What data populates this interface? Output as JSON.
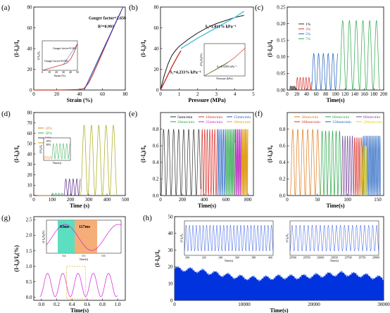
{
  "panel_labels": [
    "(a)",
    "(b)",
    "(c)",
    "(d)",
    "(e)",
    "(f)",
    "(g)",
    "(h)"
  ],
  "chart_data": [
    {
      "panel": "(a)",
      "type": "line",
      "xlabel": "Strain (%)",
      "ylabel": "(I-I₀)/I₀",
      "xlim": [
        0,
        80
      ],
      "ylim": [
        0,
        80
      ],
      "xticks": [
        "0",
        "20",
        "40",
        "60",
        "80"
      ],
      "yticks": [
        "0",
        "20",
        "40",
        "60",
        "80"
      ],
      "series": [
        {
          "color": "#c0392b",
          "style": "data",
          "x": [
            0,
            10,
            20,
            30,
            40,
            44,
            48,
            52,
            56,
            60,
            64,
            68,
            72,
            76
          ],
          "y": [
            0,
            0,
            0,
            0.2,
            0.5,
            1.5,
            7,
            16,
            26,
            36,
            46,
            56,
            66,
            75
          ]
        },
        {
          "color": "#1f3fbf",
          "style": "fit",
          "x": [
            44,
            78
          ],
          "y": [
            0,
            80
          ]
        }
      ],
      "annotations": [
        "Gauger factor=2.658",
        "R²=0.993"
      ],
      "inset": {
        "xlabel": "Strain (%)",
        "ylabel": "(I-I₀)/I₀",
        "xticks": [
          "0",
          "10",
          "20",
          "30",
          "40",
          "50"
        ],
        "annotations": [
          "Gauger factor=0.262",
          "Gauger factor=0.036"
        ],
        "x": [
          0,
          5,
          10,
          15,
          20,
          25,
          30,
          35,
          40,
          45,
          50
        ],
        "y": [
          0,
          0.2,
          0.4,
          0.6,
          0.8,
          1,
          1.2,
          1.5,
          2.2,
          3.6,
          5.4
        ]
      }
    },
    {
      "panel": "(b)",
      "type": "line",
      "xlabel": "Pressure (MPa)",
      "ylabel": "(I-I₀)/I₀",
      "xlim": [
        0,
        5
      ],
      "ylim": [
        0,
        80
      ],
      "xticks": [
        "0",
        "1",
        "2",
        "3",
        "4",
        "5"
      ],
      "yticks": [
        "0",
        "20",
        "40",
        "60",
        "80"
      ],
      "series": [
        {
          "color": "#000000",
          "style": "data",
          "x": [
            0,
            0.2,
            0.4,
            0.6,
            0.8,
            1,
            1.5,
            2,
            2.5,
            3,
            3.5,
            4,
            4.5
          ],
          "y": [
            0,
            14,
            25,
            33,
            38,
            42,
            49,
            55,
            60,
            64,
            67,
            70,
            72
          ]
        },
        {
          "color": "#c0392b",
          "style": "fit",
          "x": [
            0,
            0.3,
            0.6,
            0.9,
            1.1
          ],
          "y": [
            0,
            11,
            22,
            32,
            38
          ]
        },
        {
          "color": "#4ec3e0",
          "style": "fit",
          "x": [
            1.1,
            2,
            3,
            4,
            4.5
          ],
          "y": [
            40,
            50,
            60,
            70,
            76
          ]
        }
      ],
      "annotations": [
        "S₂=1.011% kPa⁻¹",
        "S₁=4.233% kPa⁻¹"
      ],
      "inset": {
        "xlabel": "Pressure (kPa)",
        "ylabel": "(I-I₀)/I₀(%)",
        "annotations": [
          "S₀=5.520% kPa⁻¹"
        ],
        "x": [
          0,
          1,
          2,
          3,
          4,
          5,
          6,
          7,
          8
        ],
        "y": [
          0,
          3,
          6,
          9,
          12,
          16,
          20,
          25,
          30
        ]
      }
    },
    {
      "panel": "(c)",
      "type": "line",
      "xlabel": "Time(s)",
      "ylabel": "(I-I₀)/I₀",
      "xlim": [
        0,
        200
      ],
      "ylim": [
        0,
        0.25
      ],
      "xticks": [
        "0",
        "20",
        "40",
        "60",
        "80",
        "100",
        "120",
        "140",
        "160",
        "180",
        "200"
      ],
      "yticks": [
        "0.00",
        "0.05",
        "0.10",
        "0.15",
        "0.20",
        "0.25"
      ],
      "series": [
        {
          "name": "1%",
          "color": "#333333",
          "t0": 5,
          "t1": 18,
          "period": 3,
          "amp": 0.012
        },
        {
          "name": "3%",
          "color": "#d9302c",
          "t0": 18,
          "t1": 50,
          "period": 6,
          "amp": 0.038
        },
        {
          "name": "5%",
          "color": "#1f5fbf",
          "t0": 50,
          "t1": 105,
          "period": 10,
          "amp": 0.11
        },
        {
          "name": "7%",
          "color": "#2aa84a",
          "t0": 108,
          "t1": 192,
          "period": 14,
          "amp": 0.21
        }
      ]
    },
    {
      "panel": "(d)",
      "type": "line",
      "xlabel": "Time (s)",
      "ylabel": "(I-I₀)/I₀",
      "xlim": [
        0,
        500
      ],
      "ylim": [
        0,
        80
      ],
      "xticks": [
        "0",
        "100",
        "200",
        "300",
        "400",
        "500"
      ],
      "yticks": [
        "0",
        "10",
        "20",
        "30",
        "40",
        "50",
        "60",
        "70",
        "80"
      ],
      "series": [
        {
          "name": "10%",
          "color": "#e07b1a",
          "t0": 20,
          "t1": 95,
          "period": 10,
          "amp": 0.05
        },
        {
          "name": "30%",
          "color": "#2aa84a",
          "t0": 95,
          "t1": 165,
          "period": 17,
          "amp": 2.2
        },
        {
          "name": "50%",
          "color": "#5a2a8a",
          "t0": 165,
          "t1": 255,
          "period": 20,
          "amp": 16
        },
        {
          "name": "70%",
          "color": "#a8a815",
          "t0": 255,
          "t1": 455,
          "period": 40,
          "amp": 68
        }
      ],
      "inset": {
        "xlabel": "Time(s)",
        "ylabel": "(I-I₀)/I₀",
        "series_labels": [
          "10%",
          "30%"
        ]
      }
    },
    {
      "panel": "(e)",
      "type": "line",
      "xlabel": "Time(s)",
      "ylabel": "(I-I₀)/I₀",
      "xlim": [
        0,
        850
      ],
      "ylim": [
        0,
        1.0
      ],
      "xticks": [
        "0",
        "200",
        "400",
        "600",
        "800"
      ],
      "yticks": [
        "0.0",
        "0.2",
        "0.4",
        "0.6",
        "0.8"
      ],
      "series": [
        {
          "name": "5mm/min",
          "color": "#333333",
          "t0": 5,
          "t1": 370,
          "period": 46,
          "amp": 0.8
        },
        {
          "name": "10mm/min",
          "color": "#d9302c",
          "t0": 370,
          "t1": 520,
          "period": 23,
          "amp": 0.8
        },
        {
          "name": "15mm/min",
          "color": "#1f5fbf",
          "t0": 520,
          "t1": 600,
          "period": 16,
          "amp": 0.8
        },
        {
          "name": "20mm/min",
          "color": "#2aa84a",
          "t0": 600,
          "t1": 680,
          "period": 12,
          "amp": 0.8
        },
        {
          "name": "25mm/min",
          "color": "#c02fc0",
          "t0": 680,
          "t1": 740,
          "period": 10,
          "amp": 0.8
        },
        {
          "name": "30mm/min",
          "color": "#e0a020",
          "t0": 740,
          "t1": 800,
          "period": 8,
          "amp": 0.8
        }
      ]
    },
    {
      "panel": "(f)",
      "type": "line",
      "xlabel": "Time(s)",
      "ylabel": "(I-I₀)/I₀",
      "xlim": [
        0,
        160
      ],
      "ylim": [
        0,
        1.0
      ],
      "xticks": [
        "0",
        "50",
        "100",
        "150"
      ],
      "yticks": [
        "0.0",
        "0.2",
        "0.4",
        "0.6",
        "0.8"
      ],
      "series": [
        {
          "name": "30mm/min",
          "color": "#e07b1a",
          "t0": 5,
          "t1": 55,
          "period": 8.3,
          "amp": 0.8
        },
        {
          "name": "60mm/min",
          "color": "#2aa84a",
          "t0": 55,
          "t1": 90,
          "period": 5.8,
          "amp": 0.78
        },
        {
          "name": "80mm/min",
          "color": "#7a4a9a",
          "t0": 90,
          "t1": 110,
          "period": 4,
          "amp": 0.72
        },
        {
          "name": "100mm/min",
          "color": "#d9302c",
          "t0": 110,
          "t1": 125,
          "period": 3,
          "amp": 0.7
        },
        {
          "name": "150mm/min",
          "color": "#1f5fbf",
          "t0": 125,
          "t1": 155,
          "period": 2.5,
          "amp": 0.72
        },
        {
          "name": "200mm/min",
          "color": "#e0d020",
          "t0": 122,
          "t1": 132,
          "period": 2,
          "amp": 0.6
        }
      ]
    },
    {
      "panel": "(g)",
      "type": "line",
      "xlabel": "Time(s)",
      "ylabel": "(I-I₀)/I₀(%)",
      "xlim": [
        -0.1,
        1.1
      ],
      "ylim": [
        -0.1,
        2.6
      ],
      "xticks": [
        "0.0",
        "0.2",
        "0.4",
        "0.6",
        "0.8",
        "1.0"
      ],
      "yticks": [
        "0.0",
        "0.5",
        "1.0",
        "1.5",
        "2.0",
        "2.5"
      ],
      "series": [
        {
          "color": "#d81ad8",
          "t0": -0.02,
          "t1": 1.0,
          "period": 0.2,
          "amp": 0.75,
          "base": 0.02
        }
      ],
      "inset": {
        "xlabel": "Time(s)",
        "ylabel": "(I-I₀)/I₀(%)",
        "rise_label": "83ms",
        "fall_label": "117ms",
        "xticks": [
          "0.4",
          "0.5",
          "0.6"
        ]
      }
    },
    {
      "panel": "(h)",
      "type": "area",
      "xlabel": "Time(s)",
      "ylabel": "(I-I₀)/I₀",
      "xlim": [
        0,
        30000
      ],
      "ylim": [
        0,
        50
      ],
      "xticks": [
        "0",
        "10000",
        "20000",
        "30000"
      ],
      "yticks": [
        "0",
        "10",
        "20",
        "30",
        "40",
        "50"
      ],
      "series": [
        {
          "color": "#0033dd",
          "upper": [
            [
              0,
              19
            ],
            [
              3000,
              18
            ],
            [
              6000,
              16
            ],
            [
              9000,
              14
            ],
            [
              12000,
              13
            ],
            [
              15000,
              14
            ],
            [
              18000,
              14
            ],
            [
              21000,
              15
            ],
            [
              24000,
              16
            ],
            [
              27000,
              15
            ],
            [
              30000,
              13
            ]
          ]
        }
      ],
      "inset_left": {
        "xlabel": "Time(s)",
        "ylabel": "(I-I₀)/I₀",
        "xticks": [
          "300",
          "320",
          "340",
          "360",
          "380",
          "400"
        ]
      },
      "inset_right": {
        "xlabel": "Time(s)",
        "ylabel": "(I-I₀)/I₀",
        "xticks": [
          "29500",
          "29550",
          "29600",
          "29650",
          "29700",
          "29750",
          "29800"
        ]
      }
    }
  ]
}
